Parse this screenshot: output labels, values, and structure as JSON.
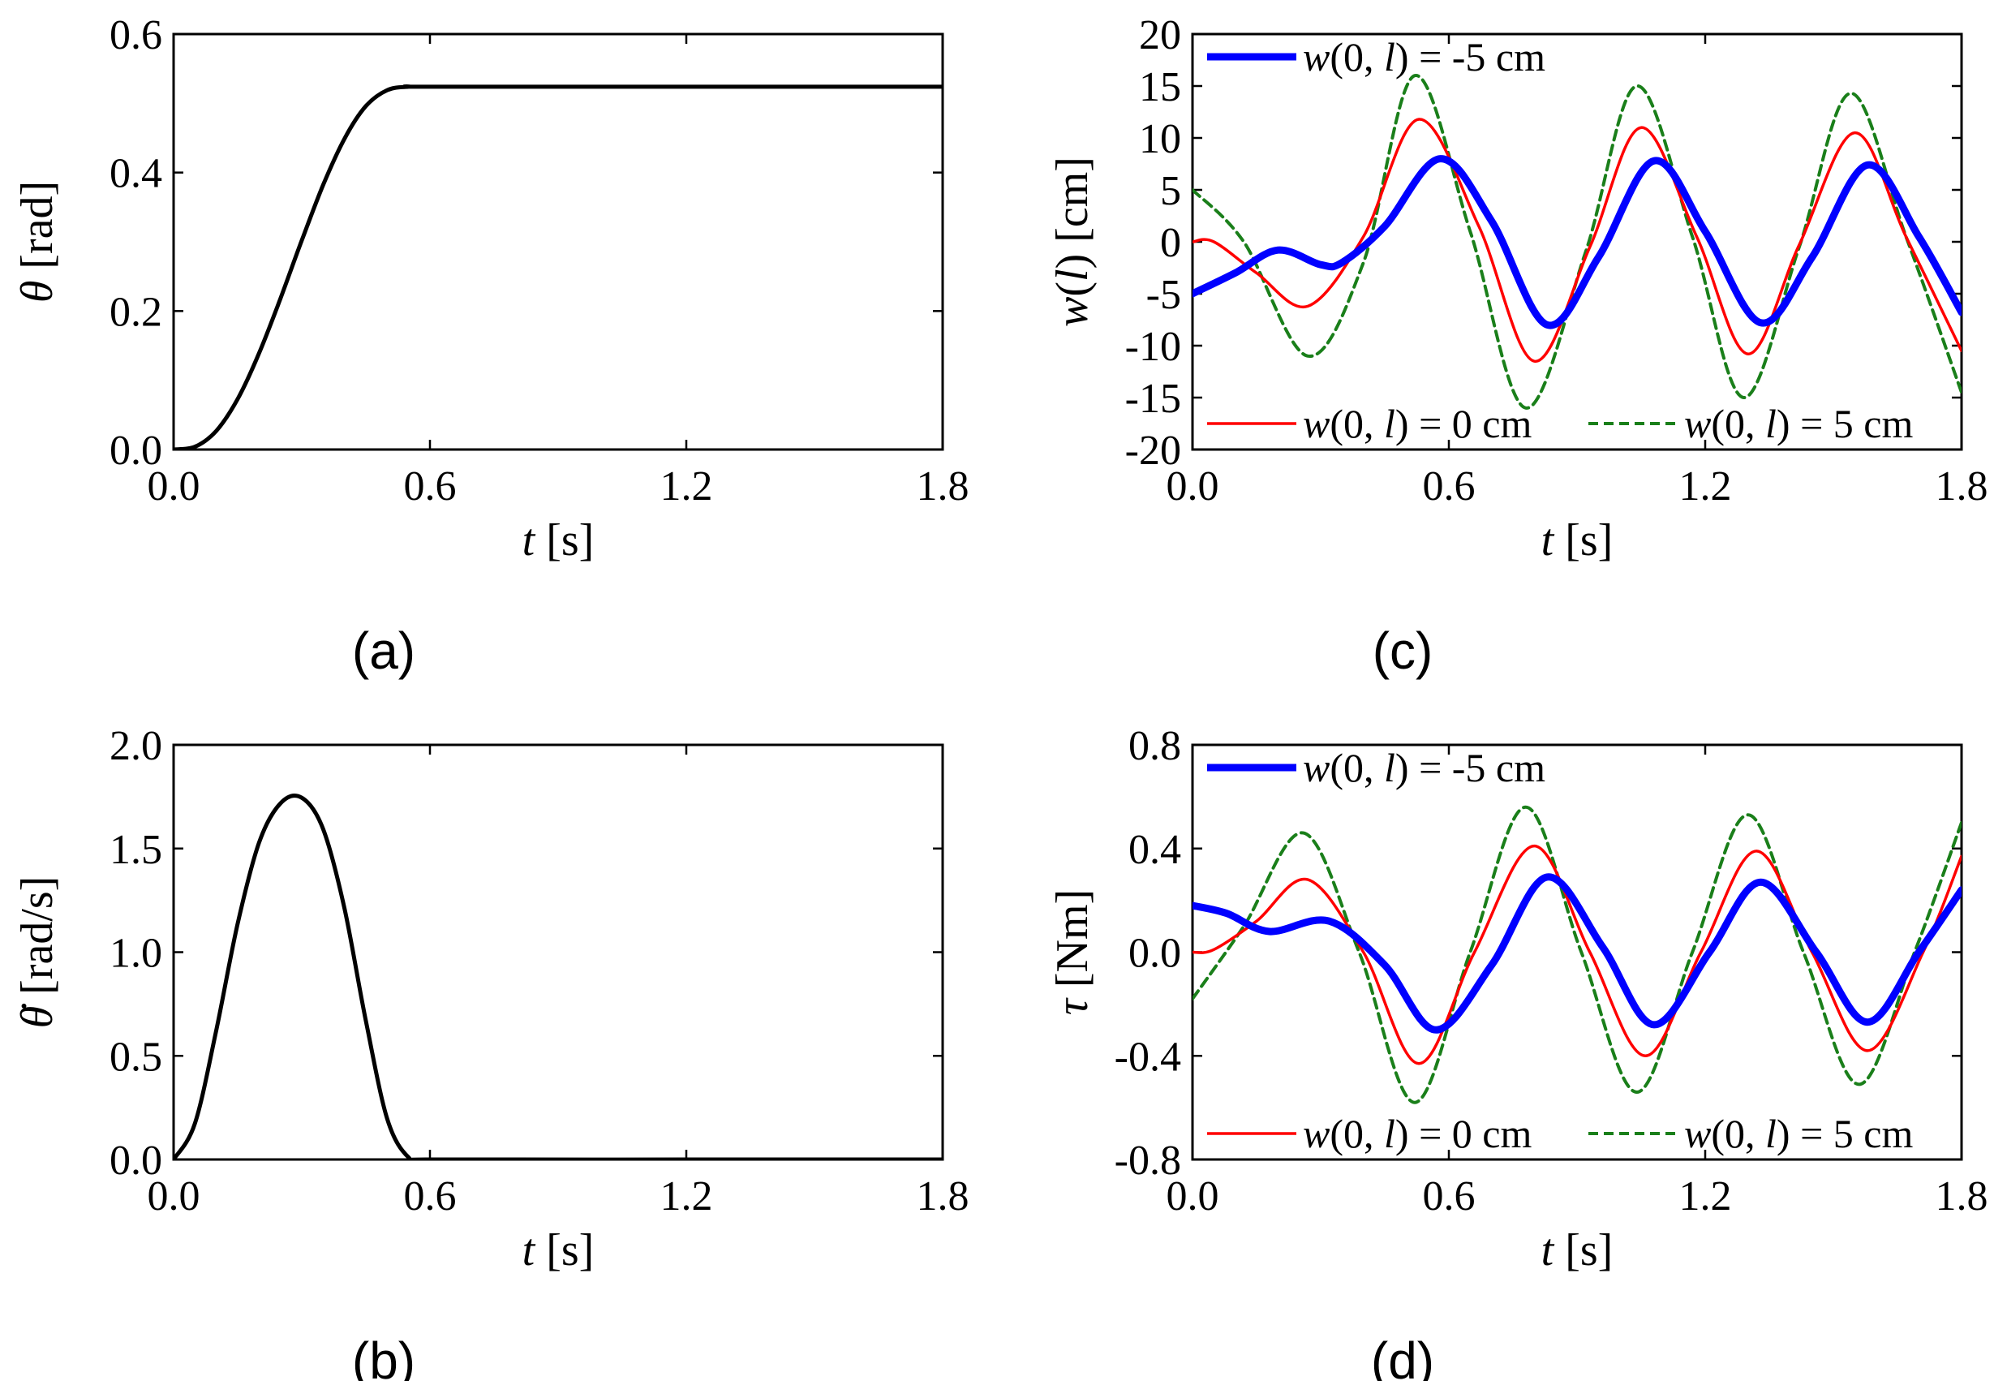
{
  "figure": {
    "background": "#ffffff",
    "panel_labels": [
      "(a)",
      "(b)",
      "(c)",
      "(d)"
    ]
  },
  "colors": {
    "black": "#000000",
    "blue": "#0000ff",
    "red": "#ff0000",
    "green": "#1a7f1a"
  },
  "chart_data": [
    {
      "id": "a",
      "type": "line",
      "panel_label": "(a)",
      "xlabel": "t [s]",
      "ylabel": "θ [rad]",
      "xlim": [
        0,
        1.8
      ],
      "ylim": [
        0,
        0.6
      ],
      "xticks": [
        "0.0",
        "0.6",
        "1.2",
        "1.8"
      ],
      "yticks": [
        "0.0",
        "0.2",
        "0.4",
        "0.6"
      ],
      "series": [
        {
          "name": "θ",
          "color": "black",
          "x": [
            0,
            0.05,
            0.1,
            0.15,
            0.2,
            0.25,
            0.3,
            0.35,
            0.4,
            0.45,
            0.5,
            0.55,
            0.6,
            1.2,
            1.8
          ],
          "y": [
            0.0,
            0.004,
            0.027,
            0.073,
            0.139,
            0.218,
            0.302,
            0.382,
            0.449,
            0.496,
            0.519,
            0.524,
            0.524,
            0.524,
            0.524
          ]
        }
      ]
    },
    {
      "id": "b",
      "type": "line",
      "panel_label": "(b)",
      "xlabel": "t [s]",
      "ylabel": "θ̇ [rad/s]",
      "xlim": [
        0,
        1.8
      ],
      "ylim": [
        0,
        2.0
      ],
      "xticks": [
        "0.0",
        "0.6",
        "1.2",
        "1.8"
      ],
      "yticks": [
        "0.0",
        "0.5",
        "1.0",
        "1.5",
        "2.0"
      ],
      "series": [
        {
          "name": "θ̇",
          "color": "black",
          "x": [
            0,
            0.05,
            0.1,
            0.15,
            0.2,
            0.25,
            0.3,
            0.35,
            0.4,
            0.45,
            0.5,
            0.55,
            0.6,
            1.2,
            1.8
          ],
          "y": [
            0.0,
            0.174,
            0.625,
            1.138,
            1.528,
            1.718,
            1.745,
            1.594,
            1.21,
            0.669,
            0.196,
            0.01,
            0.0,
            0.0,
            0.0
          ]
        }
      ]
    },
    {
      "id": "c",
      "type": "line",
      "panel_label": "(c)",
      "xlabel": "t [s]",
      "ylabel": "w(l) [cm]",
      "xlim": [
        0,
        1.8
      ],
      "ylim": [
        -20,
        20
      ],
      "xticks": [
        "0.0",
        "0.6",
        "1.2",
        "1.8"
      ],
      "yticks": [
        "-20",
        "-15",
        "-10",
        "-5",
        "0",
        "5",
        "10",
        "15",
        "20"
      ],
      "series": [
        {
          "name": "w(0, l) = -5 cm",
          "color": "blue",
          "x": [
            0,
            0.1,
            0.2,
            0.3,
            0.35,
            0.45,
            0.58,
            0.7,
            0.83,
            0.95,
            1.08,
            1.2,
            1.33,
            1.45,
            1.58,
            1.7,
            1.8
          ],
          "y": [
            -5,
            -3,
            -0.8,
            -2.2,
            -2,
            1.5,
            8,
            2,
            -8,
            -1.5,
            7.8,
            1,
            -7.8,
            -1.5,
            7.4,
            0.5,
            -6.8
          ]
        },
        {
          "name": "w(0, l) = 0 cm",
          "color": "red",
          "x": [
            0,
            0.05,
            0.15,
            0.27,
            0.4,
            0.53,
            0.67,
            0.8,
            0.93,
            1.05,
            1.18,
            1.3,
            1.42,
            1.55,
            1.67,
            1.8
          ],
          "y": [
            0,
            0,
            -3,
            -6.2,
            0.5,
            11.8,
            1.5,
            -11.5,
            -0.5,
            11,
            0.5,
            -10.8,
            -0.3,
            10.5,
            0.5,
            -10.5
          ]
        },
        {
          "name": "w(0, l) = 5 cm",
          "color": "green",
          "x": [
            0,
            0.12,
            0.27,
            0.4,
            0.52,
            0.65,
            0.78,
            0.92,
            1.04,
            1.17,
            1.29,
            1.42,
            1.54,
            1.67,
            1.8
          ],
          "y": [
            5,
            0,
            -11,
            -2,
            16,
            1,
            -16,
            -1,
            15,
            0.5,
            -15,
            -0.5,
            14.3,
            0.5,
            -14.5
          ]
        }
      ],
      "legend": [
        {
          "label": "w(0, l) = -5 cm",
          "series": 0,
          "placement": "top-left"
        },
        {
          "label": "w(0, l) = 0 cm",
          "series": 1,
          "placement": "bottom-left"
        },
        {
          "label": "w(0, l) = 5 cm",
          "series": 2,
          "placement": "bottom-right"
        }
      ]
    },
    {
      "id": "d",
      "type": "line",
      "panel_label": "(d)",
      "xlabel": "t [s]",
      "ylabel": "τ [Nm]",
      "xlim": [
        0,
        1.8
      ],
      "ylim": [
        -0.8,
        0.8
      ],
      "xticks": [
        "0.0",
        "0.6",
        "1.2",
        "1.8"
      ],
      "yticks": [
        "-0.8",
        "-0.4",
        "0.0",
        "0.4",
        "0.8"
      ],
      "series": [
        {
          "name": "w(0, l) = -5 cm",
          "color": "blue",
          "x": [
            0,
            0.08,
            0.18,
            0.32,
            0.45,
            0.57,
            0.7,
            0.83,
            0.96,
            1.08,
            1.21,
            1.33,
            1.46,
            1.58,
            1.7,
            1.8
          ],
          "y": [
            0.18,
            0.15,
            0.08,
            0.12,
            -0.05,
            -0.3,
            -0.05,
            0.29,
            0.02,
            -0.28,
            0.0,
            0.27,
            0.0,
            -0.27,
            0.0,
            0.24
          ]
        },
        {
          "name": "w(0, l) = 0 cm",
          "color": "red",
          "x": [
            0,
            0.05,
            0.15,
            0.27,
            0.4,
            0.53,
            0.66,
            0.8,
            0.93,
            1.06,
            1.19,
            1.32,
            1.45,
            1.58,
            1.71,
            1.8
          ],
          "y": [
            0.0,
            0.01,
            0.12,
            0.28,
            0.0,
            -0.43,
            0.0,
            0.41,
            0.0,
            -0.4,
            0.0,
            0.39,
            0.0,
            -0.38,
            0.0,
            0.37
          ]
        },
        {
          "name": "w(0, l) = 5 cm",
          "color": "green",
          "x": [
            0,
            0.12,
            0.26,
            0.39,
            0.52,
            0.65,
            0.78,
            0.91,
            1.04,
            1.17,
            1.3,
            1.43,
            1.56,
            1.69,
            1.8
          ],
          "y": [
            -0.18,
            0.1,
            0.46,
            0.0,
            -0.58,
            0.0,
            0.56,
            0.0,
            -0.54,
            0.0,
            0.53,
            0.0,
            -0.51,
            0.0,
            0.5
          ]
        }
      ],
      "legend": [
        {
          "label": "w(0, l) = -5 cm",
          "series": 0,
          "placement": "top-left"
        },
        {
          "label": "w(0, l) = 0 cm",
          "series": 1,
          "placement": "bottom-left"
        },
        {
          "label": "w(0, l) = 5 cm",
          "series": 2,
          "placement": "bottom-right"
        }
      ]
    }
  ]
}
